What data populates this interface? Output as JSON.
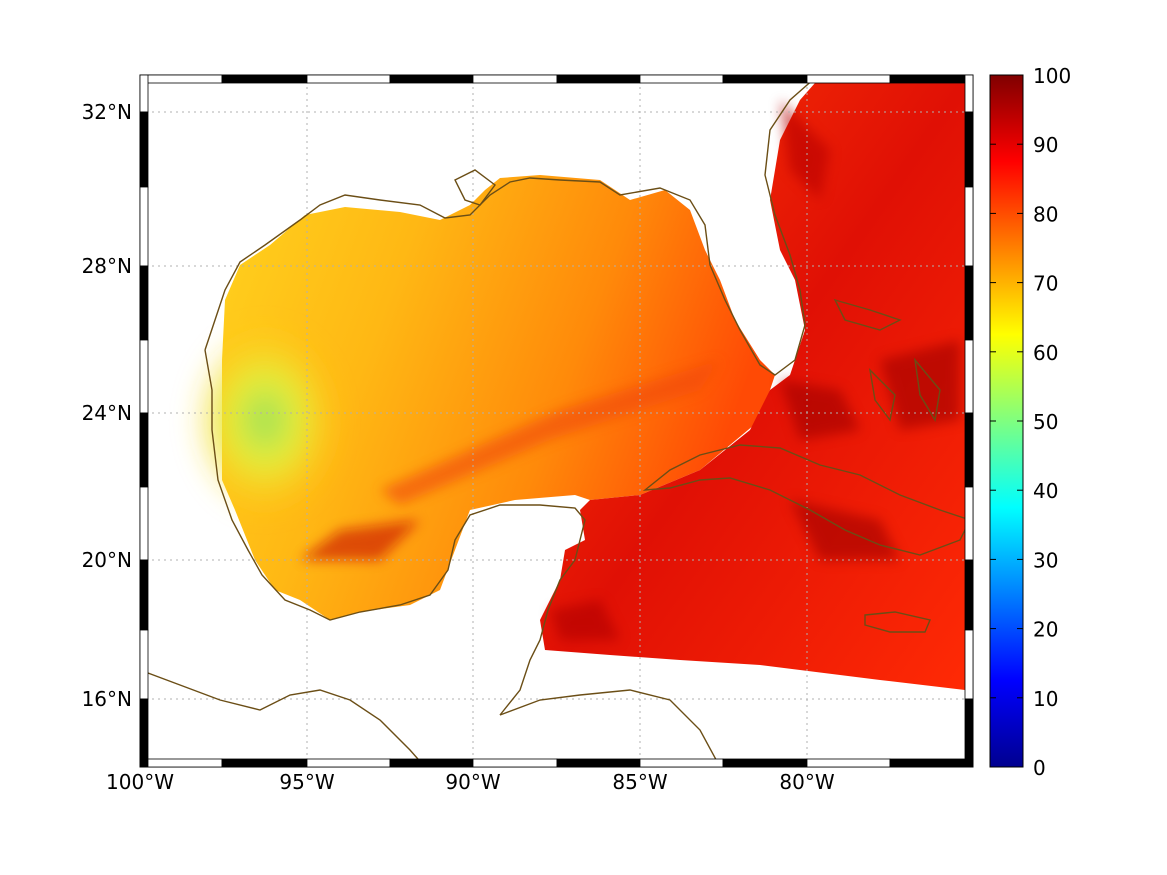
{
  "map": {
    "lon_labels": [
      "100°W",
      "95°W",
      "90°W",
      "85°W",
      "80°W"
    ],
    "lat_labels": [
      "32°N",
      "28°N",
      "24°N",
      "20°N",
      "16°N"
    ],
    "lon_range": [
      -100,
      -75
    ],
    "lat_range": [
      14.2,
      33
    ],
    "coastline_color": "#6b4e16",
    "gridline_style": "dotted",
    "frame_style": "black-white-alternating"
  },
  "colorbar": {
    "colormap": "jet",
    "min": 0,
    "max": 100,
    "tick_labels": [
      "100",
      "90",
      "80",
      "70",
      "60",
      "50",
      "40",
      "30",
      "20",
      "10",
      "0"
    ]
  },
  "field": {
    "description_values": {
      "western_gulf_min": 55,
      "central_gulf": 72,
      "eastern_gulf": 80,
      "caribbean_atlantic": 90
    }
  }
}
